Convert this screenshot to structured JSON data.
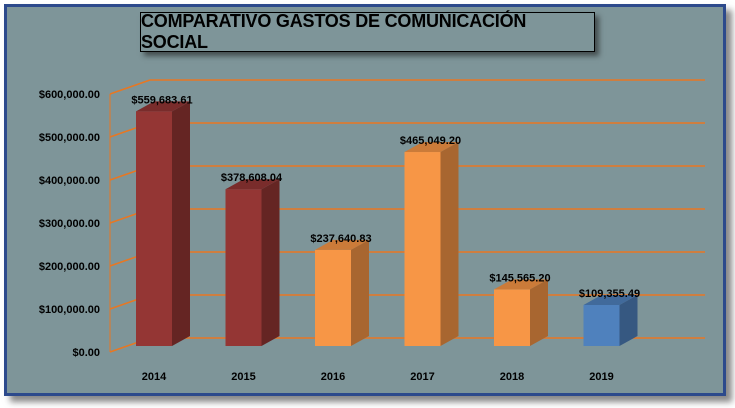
{
  "chart_data": {
    "type": "bar",
    "title": "COMPARATIVO GASTOS DE COMUNICACIÓN SOCIAL",
    "categories": [
      "2014",
      "2015",
      "2016",
      "2017",
      "2018",
      "2019"
    ],
    "values": [
      559683.61,
      378608.04,
      237640.83,
      465049.2,
      145565.2,
      109355.49
    ],
    "value_labels": [
      "$559,683.61",
      "$378,608.04",
      "$237,640.83",
      "$465,049.20",
      "$145,565.20",
      "$109,355.49"
    ],
    "y_ticks": [
      0,
      100000,
      200000,
      300000,
      400000,
      500000,
      600000
    ],
    "y_tick_labels": [
      "$0.00",
      "$100,000.00",
      "$200,000.00",
      "$300,000.00",
      "$400,000.00",
      "$500,000.00",
      "$600,000.00"
    ],
    "ylim": [
      0,
      600000
    ],
    "grid": true,
    "bar_colors": [
      "#943634",
      "#943634",
      "#f79646",
      "#f79646",
      "#f79646",
      "#4f81bd"
    ],
    "grid_color": "#e87722",
    "xlabel": "",
    "ylabel": ""
  }
}
